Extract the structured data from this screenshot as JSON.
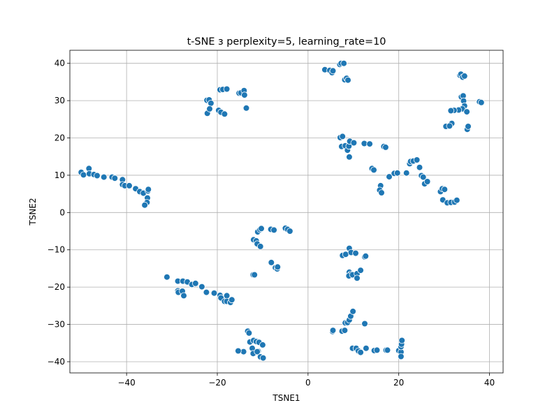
{
  "chart_data": {
    "type": "scatter",
    "title": "t-SNE з perplexity=5, learning_rate=10",
    "xlabel": "TSNE1",
    "ylabel": "TSNE2",
    "xlim": [
      -52.5,
      43.0
    ],
    "ylim": [
      -43.0,
      43.5
    ],
    "xticks": [
      -40,
      -20,
      0,
      20,
      40
    ],
    "yticks": [
      -40,
      -30,
      -20,
      -10,
      0,
      10,
      20,
      30,
      40
    ],
    "xtick_labels": [
      "−40",
      "−20",
      "0",
      "20",
      "40"
    ],
    "ytick_labels": [
      "−40",
      "−30",
      "−20",
      "−10",
      "0",
      "10",
      "20",
      "30",
      "40"
    ],
    "grid": true,
    "marker_color": "#1f77b4",
    "points": [
      [
        -50,
        10.8
      ],
      [
        -49.5,
        10.1
      ],
      [
        -48.3,
        11.8
      ],
      [
        -48.2,
        10.4
      ],
      [
        -47.2,
        10.2
      ],
      [
        -46.5,
        9.9
      ],
      [
        -45,
        9.5
      ],
      [
        -43.2,
        9.5
      ],
      [
        -42.6,
        9.2
      ],
      [
        -40.9,
        8.8
      ],
      [
        -40.9,
        7.5
      ],
      [
        -40.4,
        7.2
      ],
      [
        -39.4,
        7.2
      ],
      [
        -38,
        6.4
      ],
      [
        -37.1,
        5.6
      ],
      [
        -36.3,
        5.2
      ],
      [
        -35.3,
        5.8
      ],
      [
        -35.2,
        6.2
      ],
      [
        -35.4,
        3.9
      ],
      [
        -35.5,
        2.7
      ],
      [
        -36,
        2
      ],
      [
        -22.3,
        30.1
      ],
      [
        -21.8,
        30.2
      ],
      [
        -21.4,
        29.3
      ],
      [
        -22.2,
        26.6
      ],
      [
        -21.7,
        27.8
      ],
      [
        -19.7,
        27.4
      ],
      [
        -19.2,
        26.9
      ],
      [
        -18.4,
        26.4
      ],
      [
        -19.4,
        32.9
      ],
      [
        -18.8,
        33
      ],
      [
        -17.9,
        33.1
      ],
      [
        -15.2,
        32
      ],
      [
        -14.8,
        32.1
      ],
      [
        -14.1,
        32.7
      ],
      [
        -14,
        31.5
      ],
      [
        -13.6,
        28
      ],
      [
        3.7,
        38.3
      ],
      [
        4.8,
        38.1
      ],
      [
        5.3,
        37.5
      ],
      [
        5.5,
        38
      ],
      [
        7,
        39.7
      ],
      [
        7.3,
        40
      ],
      [
        7.9,
        40
      ],
      [
        8.1,
        35.6
      ],
      [
        8.5,
        36
      ],
      [
        8.8,
        35.5
      ],
      [
        33.5,
        36.8
      ],
      [
        33.7,
        37.1
      ],
      [
        34.1,
        36.3
      ],
      [
        34.5,
        36.6
      ],
      [
        33.8,
        31
      ],
      [
        34.2,
        31.3
      ],
      [
        34.3,
        29.9
      ],
      [
        34.5,
        28.6
      ],
      [
        34,
        27.8
      ],
      [
        33.2,
        27.5
      ],
      [
        32.2,
        27.4
      ],
      [
        31.5,
        27.3
      ],
      [
        35,
        27
      ],
      [
        31.7,
        23.9
      ],
      [
        30.4,
        23.1
      ],
      [
        31.2,
        23.2
      ],
      [
        35.1,
        22.3
      ],
      [
        35.3,
        23.1
      ],
      [
        37.8,
        29.7
      ],
      [
        38.2,
        29.5
      ],
      [
        7.1,
        20.1
      ],
      [
        7.6,
        20.4
      ],
      [
        7.4,
        17.7
      ],
      [
        8.2,
        17.9
      ],
      [
        8.7,
        16.7
      ],
      [
        9,
        17.8
      ],
      [
        9.2,
        19.1
      ],
      [
        10.1,
        18.7
      ],
      [
        9.1,
        14.9
      ],
      [
        12.4,
        18.5
      ],
      [
        13.6,
        18.4
      ],
      [
        16.7,
        17.7
      ],
      [
        17.1,
        17.5
      ],
      [
        14.1,
        11.8
      ],
      [
        14.5,
        11.4
      ],
      [
        16,
        7.2
      ],
      [
        15.8,
        6
      ],
      [
        16.2,
        5.3
      ],
      [
        17.9,
        9.6
      ],
      [
        19,
        10.5
      ],
      [
        19.7,
        10.6
      ],
      [
        21.7,
        10.6
      ],
      [
        22.4,
        13.1
      ],
      [
        22.6,
        13.7
      ],
      [
        23.2,
        13.8
      ],
      [
        24,
        14.1
      ],
      [
        24.6,
        12.1
      ],
      [
        25,
        9.9
      ],
      [
        25.4,
        9.5
      ],
      [
        25.7,
        7.7
      ],
      [
        26.3,
        8.3
      ],
      [
        29.2,
        5.6
      ],
      [
        29.6,
        6.4
      ],
      [
        30.1,
        6.2
      ],
      [
        29.7,
        3.4
      ],
      [
        30.7,
        2.6
      ],
      [
        31.5,
        2.7
      ],
      [
        32.3,
        2.8
      ],
      [
        32.8,
        3.3
      ],
      [
        -12,
        -7.3
      ],
      [
        -11.4,
        -7.6
      ],
      [
        -11.2,
        -8.4
      ],
      [
        -10.5,
        -9.1
      ],
      [
        -11.1,
        -5.2
      ],
      [
        -10.6,
        -4.6
      ],
      [
        -10.3,
        -4.3
      ],
      [
        -8.2,
        -4.5
      ],
      [
        -7.5,
        -4.7
      ],
      [
        -5,
        -4.2
      ],
      [
        -4.5,
        -4.5
      ],
      [
        -4,
        -5
      ],
      [
        -8.1,
        -13.4
      ],
      [
        -7.2,
        -14.8
      ],
      [
        -6.8,
        -15.1
      ],
      [
        -6.7,
        -14.6
      ],
      [
        -12.1,
        -16.7
      ],
      [
        -11.8,
        -16.7
      ],
      [
        7.6,
        -11.5
      ],
      [
        8.3,
        -11.2
      ],
      [
        9.1,
        -9.6
      ],
      [
        9.5,
        -10.7
      ],
      [
        10.5,
        -10.9
      ],
      [
        12.5,
        -11.9
      ],
      [
        12.7,
        -11.7
      ],
      [
        9.1,
        -16
      ],
      [
        9.4,
        -16.5
      ],
      [
        9,
        -17
      ],
      [
        9.8,
        -16.7
      ],
      [
        10.8,
        -16.4
      ],
      [
        11.6,
        -15.5
      ],
      [
        10.8,
        -17.6
      ],
      [
        -31.1,
        -17.3
      ],
      [
        -28.7,
        -18.4
      ],
      [
        -28.7,
        -21
      ],
      [
        -28.6,
        -21.4
      ],
      [
        -27.7,
        -21.1
      ],
      [
        -27.4,
        -22.3
      ],
      [
        -27.6,
        -18.4
      ],
      [
        -26.6,
        -18.6
      ],
      [
        -25.6,
        -19.3
      ],
      [
        -24.8,
        -19
      ],
      [
        -23.4,
        -19.9
      ],
      [
        -22.4,
        -21.4
      ],
      [
        -20.7,
        -21.6
      ],
      [
        -19.4,
        -22.2
      ],
      [
        -19.2,
        -22.9
      ],
      [
        -18.4,
        -23.8
      ],
      [
        -17.9,
        -22.3
      ],
      [
        -17.9,
        -23.8
      ],
      [
        -17.1,
        -24.1
      ],
      [
        -16.8,
        -23.4
      ],
      [
        -13.3,
        -31.8
      ],
      [
        -13,
        -32.3
      ],
      [
        -12.8,
        -34.7
      ],
      [
        -12,
        -34.3
      ],
      [
        -11.4,
        -34.6
      ],
      [
        -10.8,
        -34.8
      ],
      [
        -10,
        -35.5
      ],
      [
        -12.3,
        -36.4
      ],
      [
        -11,
        -37.2
      ],
      [
        -12.1,
        -37.8
      ],
      [
        -11.2,
        -37.3
      ],
      [
        -10.5,
        -38.7
      ],
      [
        -9.9,
        -39
      ],
      [
        -14.2,
        -37.3
      ],
      [
        -15.4,
        -37.1
      ],
      [
        5.4,
        -31.9
      ],
      [
        5.5,
        -31.6
      ],
      [
        7.5,
        -31.8
      ],
      [
        8.1,
        -31.6
      ],
      [
        8.2,
        -29.6
      ],
      [
        8.7,
        -29.5
      ],
      [
        9.1,
        -28.8
      ],
      [
        9.4,
        -27.8
      ],
      [
        9.9,
        -26.5
      ],
      [
        12.5,
        -29.8
      ],
      [
        9.8,
        -36.4
      ],
      [
        10.6,
        -36.4
      ],
      [
        11.1,
        -37.1
      ],
      [
        11.6,
        -37.5
      ],
      [
        12.8,
        -36.4
      ],
      [
        14.6,
        -37
      ],
      [
        15.2,
        -36.9
      ],
      [
        17.2,
        -36.9
      ],
      [
        17.5,
        -36.9
      ],
      [
        20,
        -37
      ],
      [
        20.5,
        -37.4
      ],
      [
        20.5,
        -38.6
      ],
      [
        20.5,
        -36
      ],
      [
        20.6,
        -35.3
      ],
      [
        20.7,
        -34.3
      ]
    ]
  }
}
